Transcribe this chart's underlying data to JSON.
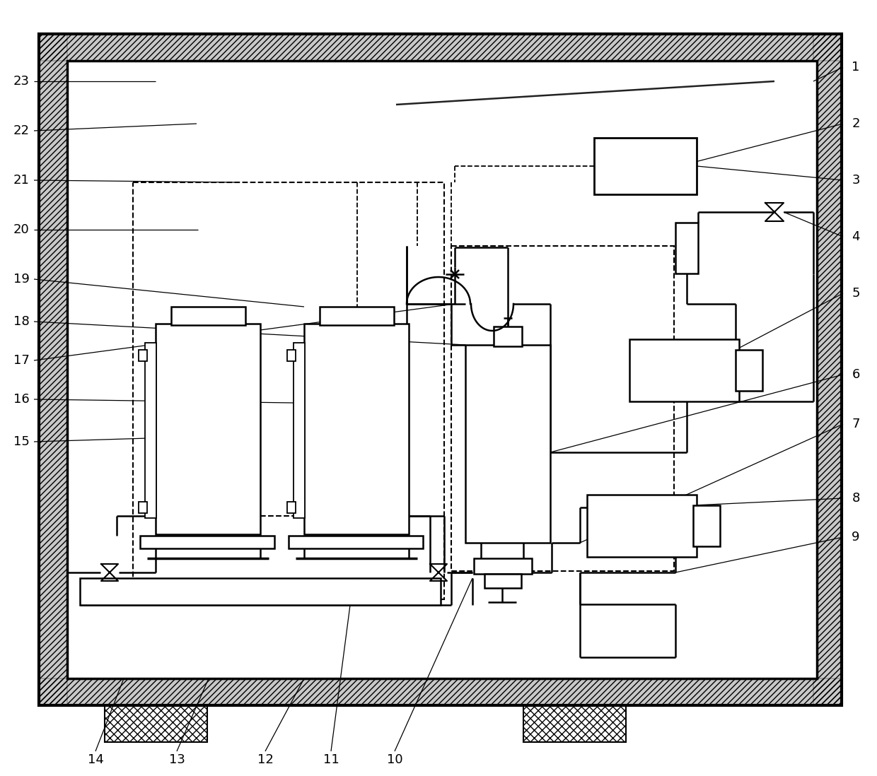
{
  "bg": "#ffffff",
  "lc": "#000000",
  "figsize": [
    12.4,
    10.98
  ],
  "dpi": 100,
  "labels_right": [
    [
      "1",
      1195,
      95
    ],
    [
      "2",
      1195,
      175
    ],
    [
      "3",
      1195,
      255
    ],
    [
      "4",
      1195,
      335
    ],
    [
      "5",
      1195,
      415
    ],
    [
      "6",
      1195,
      530
    ],
    [
      "7",
      1195,
      600
    ],
    [
      "8",
      1195,
      705
    ],
    [
      "9",
      1195,
      760
    ]
  ],
  "labels_left": [
    [
      "23",
      45,
      115
    ],
    [
      "22",
      45,
      185
    ],
    [
      "21",
      45,
      255
    ],
    [
      "20",
      45,
      325
    ],
    [
      "19",
      45,
      395
    ],
    [
      "18",
      45,
      455
    ],
    [
      "17",
      45,
      510
    ],
    [
      "16",
      45,
      565
    ],
    [
      "15",
      45,
      625
    ]
  ],
  "labels_bottom": [
    [
      "14",
      135,
      1068
    ],
    [
      "13",
      250,
      1068
    ],
    [
      "12",
      375,
      1068
    ],
    [
      "11",
      468,
      1068
    ],
    [
      "10",
      558,
      1068
    ]
  ]
}
